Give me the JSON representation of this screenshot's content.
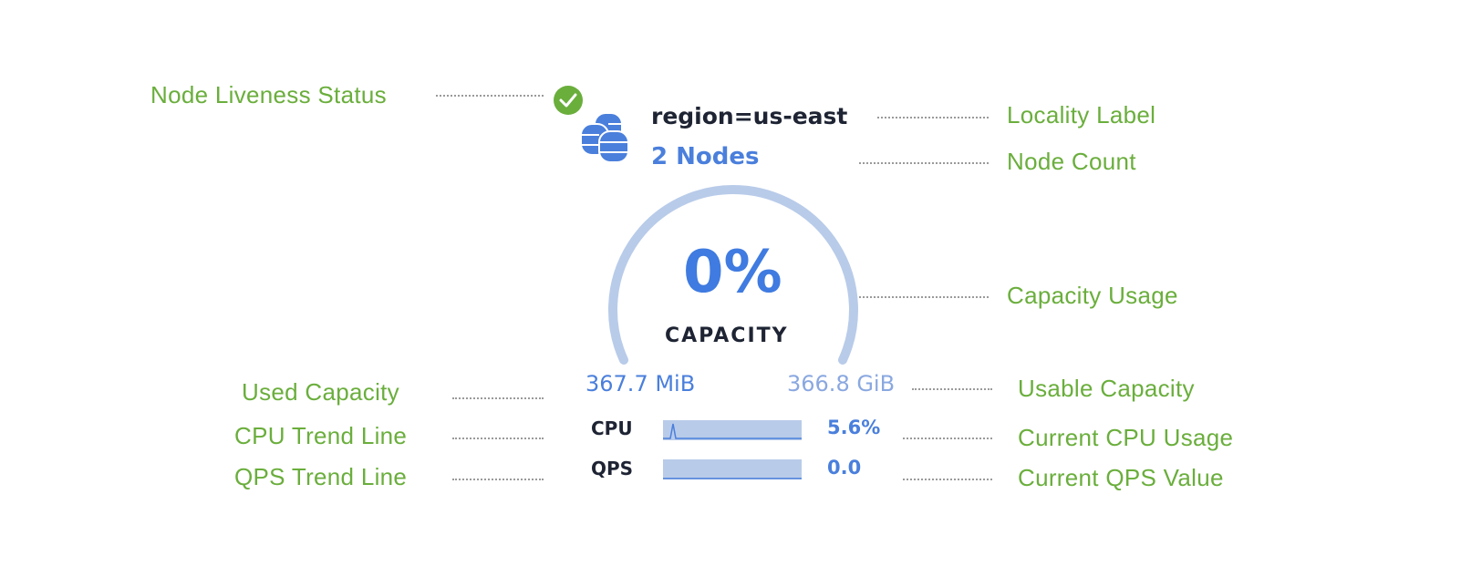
{
  "annotations": {
    "liveness": "Node Liveness Status",
    "locality": "Locality Label",
    "node_count": "Node Count",
    "capacity_usage": "Capacity Usage",
    "used_capacity": "Used Capacity",
    "usable_capacity": "Usable Capacity",
    "cpu_trend": "CPU Trend Line",
    "current_cpu": "Current CPU Usage",
    "qps_trend": "QPS Trend Line",
    "current_qps": "Current QPS Value"
  },
  "card": {
    "liveness_status": "live",
    "locality": "region=us-east",
    "node_count": "2 Nodes",
    "capacity_percent": "0%",
    "capacity_percent_value": 0,
    "capacity_label": "CAPACITY",
    "used": "367.7 MiB",
    "usable": "366.8 GiB",
    "cpu_label": "CPU",
    "cpu_value": "5.6%",
    "qps_label": "QPS",
    "qps_value": "0.0"
  },
  "colors": {
    "annotation": "#6aae3c",
    "accent": "#4a7fdc",
    "arc": "#b8cbe9",
    "status_ok": "#6aae3c"
  },
  "icons": {
    "status": "check-circle-icon",
    "nodes": "database-icon"
  }
}
